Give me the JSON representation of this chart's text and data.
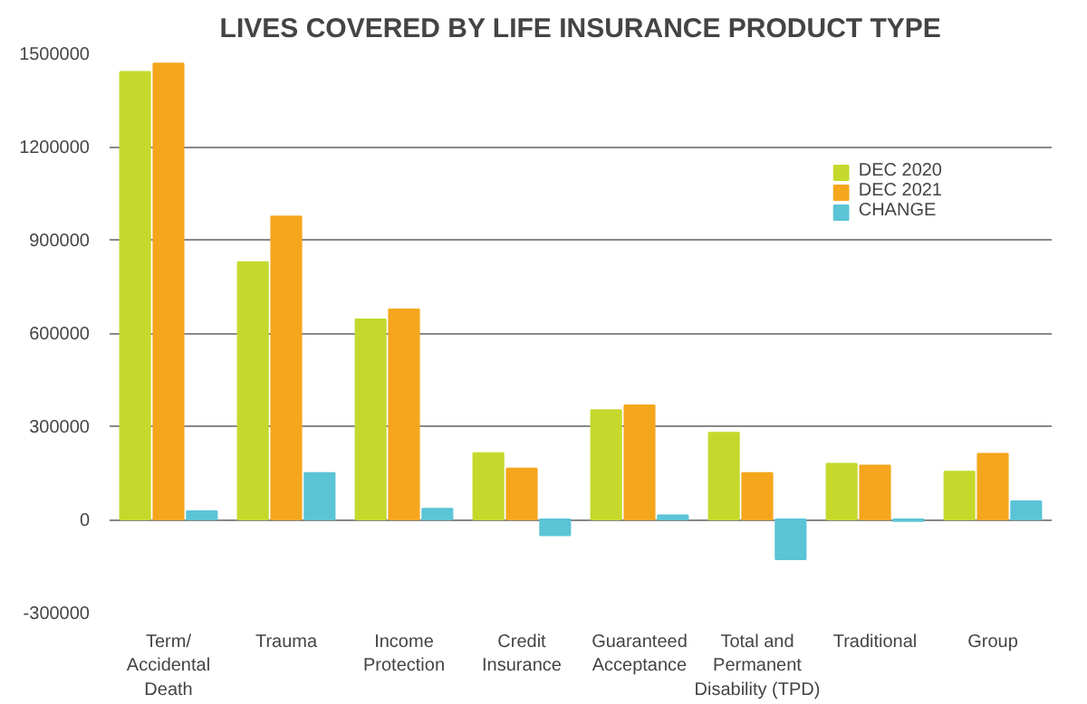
{
  "chart_data": {
    "type": "bar",
    "title": "LIVES COVERED BY LIFE INSURANCE PRODUCT TYPE",
    "categories": [
      "Term/\nAccidental\nDeath",
      "Trauma",
      "Income\nProtection",
      "Credit\nInsurance",
      "Guaranteed\nAcceptance",
      "Total and\nPermanent\nDisability (TPD)",
      "Traditional",
      "Group"
    ],
    "series": [
      {
        "name": "DEC 2020",
        "color": "#c5d92d",
        "values": [
          1440000,
          828000,
          644000,
          213000,
          352000,
          279000,
          179000,
          154000
        ]
      },
      {
        "name": "DEC 2021",
        "color": "#f5a61d",
        "values": [
          1467000,
          975000,
          676000,
          164000,
          367000,
          149000,
          173000,
          211000
        ]
      },
      {
        "name": "CHANGE",
        "color": "#5bc4d6",
        "values": [
          26000,
          149000,
          34000,
          -51000,
          13000,
          -128000,
          -5000,
          58000
        ]
      }
    ],
    "ylim": [
      -300000,
      1500000
    ],
    "yticks": [
      -300000,
      0,
      300000,
      600000,
      900000,
      1200000,
      1500000
    ],
    "grid": "y",
    "legend": "top right"
  }
}
